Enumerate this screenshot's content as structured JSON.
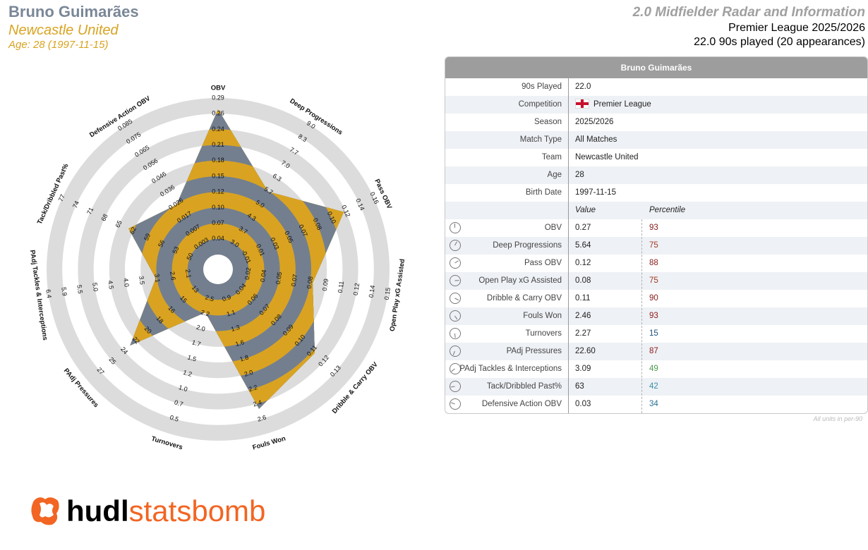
{
  "header": {
    "player": "Bruno Guimarães",
    "team": "Newcastle United",
    "age_line": "Age: 28 (1997-11-15)",
    "title": "2.0 Midfielder Radar and Information",
    "league_line": "Premier League 2025/2026",
    "played_line": "22.0 90s played (20 appearances)"
  },
  "card": {
    "title": "Bruno Guimarães",
    "info": [
      {
        "label": "90s Played",
        "value": "22.0"
      },
      {
        "label": "Competition",
        "value": "Premier League",
        "flag": "england-flag-icon"
      },
      {
        "label": "Season",
        "value": "2025/2026"
      },
      {
        "label": "Match Type",
        "value": "All Matches"
      },
      {
        "label": "Team",
        "value": "Newcastle United"
      },
      {
        "label": "Age",
        "value": "28"
      },
      {
        "label": "Birth Date",
        "value": "1997-11-15"
      }
    ],
    "value_header": "Value",
    "percentile_header": "Percentile",
    "metrics": [
      {
        "label": "OBV",
        "value": "0.27",
        "percentile": "93",
        "color": "#8b1a1a"
      },
      {
        "label": "Deep Progressions",
        "value": "5.64",
        "percentile": "75",
        "color": "#a23a22"
      },
      {
        "label": "Pass OBV",
        "value": "0.12",
        "percentile": "88",
        "color": "#8b1a1a"
      },
      {
        "label": "Open Play xG Assisted",
        "value": "0.08",
        "percentile": "75",
        "color": "#a23a22"
      },
      {
        "label": "Dribble & Carry OBV",
        "value": "0.11",
        "percentile": "90",
        "color": "#8b1a1a"
      },
      {
        "label": "Fouls Won",
        "value": "2.46",
        "percentile": "93",
        "color": "#8b1a1a"
      },
      {
        "label": "Turnovers",
        "value": "2.27",
        "percentile": "15",
        "color": "#1f4e79"
      },
      {
        "label": "PAdj Pressures",
        "value": "22.60",
        "percentile": "87",
        "color": "#8b1a1a"
      },
      {
        "label": "PAdj Tackles & Interceptions",
        "value": "3.09",
        "percentile": "49",
        "color": "#4c9a4c"
      },
      {
        "label": "Tack/Dribbled Past%",
        "value": "63",
        "percentile": "42",
        "color": "#3a8fa8"
      },
      {
        "label": "Defensive Action OBV",
        "value": "0.03",
        "percentile": "34",
        "color": "#2a6f97"
      }
    ],
    "footnote": "All units in per-90"
  },
  "chart_data": {
    "type": "radar",
    "colors": {
      "ring_light": "#dcdcdc",
      "band_gold": "#d9a321",
      "band_slate": "#737f8f"
    },
    "axes": [
      {
        "name": "OBV",
        "value": 0.27,
        "ticks": [
          "0.04",
          "0.07",
          "0.10",
          "0.12",
          "0.15",
          "0.18",
          "0.21",
          "0.24",
          "0.26",
          "0.29"
        ]
      },
      {
        "name": "Deep Progressions",
        "value": 5.64,
        "ticks": [
          "3.0",
          "3.7",
          "4.3",
          "5.0",
          "5.7",
          "6.3",
          "7.0",
          "7.7",
          "8.3",
          "9.0"
        ]
      },
      {
        "name": "Pass OBV",
        "value": 0.12,
        "ticks": [
          "-0.01",
          "0.01",
          "0.03",
          "0.05",
          "0.07",
          "0.08",
          "0.10",
          "0.12",
          "0.14",
          "0.16"
        ]
      },
      {
        "name": "Open Play xG Assisted",
        "value": 0.08,
        "ticks": [
          "0.02",
          "0.04",
          "0.05",
          "0.07",
          "0.08",
          "0.09",
          "0.11",
          "0.12",
          "0.14",
          "0.15"
        ]
      },
      {
        "name": "Dribble & Carry OBV",
        "value": 0.11,
        "ticks": [
          "0.04",
          "0.06",
          "0.07",
          "0.08",
          "0.09",
          "0.10",
          "0.11",
          "0.12",
          "0.13"
        ]
      },
      {
        "name": "Fouls Won",
        "value": 2.46,
        "ticks": [
          "0.9",
          "1.1",
          "1.3",
          "1.6",
          "1.8",
          "2.0",
          "2.2",
          "2.4",
          "2.6"
        ]
      },
      {
        "name": "Turnovers",
        "value": 2.27,
        "ticks": [
          "2.5",
          "2.2",
          "2.0",
          "1.7",
          "1.5",
          "1.2",
          "1.0",
          "0.7",
          "0.5"
        ]
      },
      {
        "name": "PAdj Pressures",
        "value": 22.6,
        "ticks": [
          "13",
          "15",
          "16",
          "18",
          "20",
          "22",
          "24",
          "25",
          "27"
        ]
      },
      {
        "name": "PAdj Tackles & Interceptions",
        "value": 3.09,
        "ticks": [
          "2.1",
          "2.6",
          "3.1",
          "3.5",
          "4.0",
          "4.5",
          "5.0",
          "5.5",
          "5.9",
          "6.4"
        ]
      },
      {
        "name": "Tack/Dribbled Past%",
        "value": 63,
        "ticks": [
          "50",
          "53",
          "56",
          "59",
          "62",
          "65",
          "68",
          "71",
          "74",
          "77"
        ]
      },
      {
        "name": "Defensive Action OBV",
        "value": 0.03,
        "ticks": [
          "0.003",
          "0.007",
          "0.017",
          "0.026",
          "0.036",
          "0.046",
          "0.056",
          "0.065",
          "0.075",
          "0.085"
        ]
      }
    ],
    "inner_labels": [
      "0.7",
      "-0.03",
      "0.02",
      "0.03"
    ]
  },
  "logo": {
    "part1": "hudl",
    "part2": "statsbomb"
  }
}
